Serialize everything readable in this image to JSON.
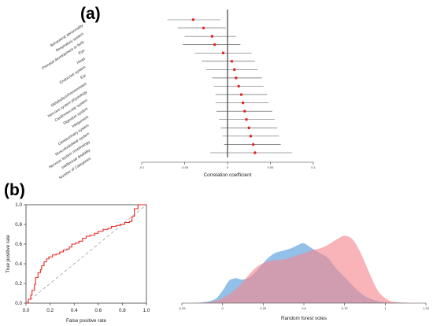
{
  "panels": {
    "a_label": "(a)",
    "b_label": "(b)"
  },
  "chart_data": [
    {
      "type": "scatter",
      "variant": "forest-plot",
      "panel": "(a)",
      "xlabel": "Correlation coefficient",
      "xlim": [
        -0.1,
        0.1
      ],
      "xticks": [
        "-0.1",
        "-0.05",
        "0",
        "0.05",
        "0.1"
      ],
      "xtick_values": [
        -0.1,
        -0.05,
        0,
        0.05,
        0.1
      ],
      "reference_line": 0,
      "point_color": "#e8231e",
      "categories": [
        "Behavioral abnormality",
        "Respiratory system",
        "Prenatal development or birth",
        "Eye",
        "Head",
        "Endocrine system",
        "Ear",
        "Metabolism/homeostasis",
        "Nervous system physiology",
        "Cardiovascular system",
        "Digestive system",
        "Integument",
        "Genitourinary system",
        "Musculoskeletal system",
        "Nervous system morphology",
        "Intellectual disability",
        "Number of Categories"
      ],
      "estimate": [
        -0.04,
        -0.028,
        -0.018,
        -0.015,
        -0.005,
        0.005,
        0.008,
        0.01,
        0.013,
        0.016,
        0.018,
        0.02,
        0.022,
        0.025,
        0.027,
        0.03,
        0.032
      ],
      "lower": [
        -0.07,
        -0.058,
        -0.05,
        -0.052,
        -0.038,
        -0.03,
        -0.025,
        -0.018,
        -0.016,
        -0.014,
        -0.014,
        -0.013,
        -0.01,
        -0.008,
        -0.006,
        -0.004,
        -0.02
      ],
      "upper": [
        -0.008,
        -0.002,
        0.01,
        0.015,
        0.028,
        0.032,
        0.035,
        0.04,
        0.042,
        0.046,
        0.048,
        0.052,
        0.055,
        0.058,
        0.06,
        0.062,
        0.075
      ]
    },
    {
      "type": "line",
      "variant": "roc-curve",
      "panel": "(b)",
      "xlabel": "False positive rate",
      "ylabel": "True positive rate",
      "xlim": [
        0,
        1
      ],
      "ylim": [
        0,
        1
      ],
      "ticks": [
        0.0,
        0.2,
        0.4,
        0.6,
        0.8,
        1.0
      ],
      "tick_labels": [
        "0.0",
        "0.2",
        "0.4",
        "0.6",
        "0.8",
        "1.0"
      ],
      "curve_color": "#e8231e",
      "diagonal_color": "#a8a8a8",
      "fpr": [
        0,
        0.02,
        0.02,
        0.04,
        0.04,
        0.05,
        0.05,
        0.07,
        0.07,
        0.08,
        0.08,
        0.1,
        0.1,
        0.12,
        0.12,
        0.13,
        0.13,
        0.15,
        0.15,
        0.17,
        0.17,
        0.19,
        0.19,
        0.22,
        0.22,
        0.25,
        0.25,
        0.28,
        0.28,
        0.31,
        0.31,
        0.34,
        0.34,
        0.36,
        0.36,
        0.38,
        0.38,
        0.41,
        0.41,
        0.44,
        0.44,
        0.47,
        0.47,
        0.5,
        0.5,
        0.53,
        0.53,
        0.57,
        0.57,
        0.6,
        0.6,
        0.64,
        0.64,
        0.68,
        0.68,
        0.71,
        0.71,
        0.75,
        0.75,
        0.78,
        0.78,
        0.82,
        0.82,
        0.86,
        0.86,
        0.88,
        0.88,
        0.9,
        0.9,
        0.93,
        0.93,
        1.0
      ],
      "tpr": [
        0,
        0,
        0.04,
        0.04,
        0.08,
        0.08,
        0.13,
        0.13,
        0.19,
        0.19,
        0.26,
        0.26,
        0.31,
        0.31,
        0.34,
        0.34,
        0.38,
        0.38,
        0.42,
        0.42,
        0.45,
        0.45,
        0.47,
        0.47,
        0.49,
        0.49,
        0.5,
        0.5,
        0.52,
        0.52,
        0.54,
        0.54,
        0.55,
        0.55,
        0.57,
        0.57,
        0.6,
        0.6,
        0.61,
        0.61,
        0.63,
        0.63,
        0.66,
        0.66,
        0.68,
        0.68,
        0.69,
        0.69,
        0.71,
        0.71,
        0.73,
        0.73,
        0.75,
        0.75,
        0.76,
        0.76,
        0.78,
        0.78,
        0.79,
        0.79,
        0.8,
        0.8,
        0.82,
        0.82,
        0.83,
        0.83,
        0.88,
        0.88,
        0.96,
        0.96,
        1.0,
        1.0
      ]
    },
    {
      "type": "area",
      "variant": "density",
      "panel": "(b)",
      "xlabel": "Random forest votes",
      "xlim": [
        -0.25,
        1.25
      ],
      "xticks": [
        "-0.25",
        "0",
        "0.25",
        "0.5",
        "0.75",
        "1",
        "1.25"
      ],
      "xtick_values": [
        -0.25,
        0,
        0.25,
        0.5,
        0.75,
        1.0,
        1.25
      ],
      "ylim": [
        0,
        1.2
      ],
      "x": [
        -0.25,
        -0.15,
        -0.05,
        0.0,
        0.04,
        0.08,
        0.12,
        0.17,
        0.22,
        0.27,
        0.32,
        0.37,
        0.42,
        0.47,
        0.5,
        0.55,
        0.6,
        0.65,
        0.7,
        0.75,
        0.8,
        0.85,
        0.9,
        0.95,
        1.0,
        1.05,
        1.15,
        1.25
      ],
      "series": [
        {
          "color": "#6aa7e0",
          "values": [
            0.0,
            0.004,
            0.06,
            0.2,
            0.36,
            0.4,
            0.38,
            0.42,
            0.55,
            0.7,
            0.8,
            0.84,
            0.88,
            0.94,
            0.96,
            0.88,
            0.8,
            0.72,
            0.55,
            0.42,
            0.28,
            0.16,
            0.08,
            0.035,
            0.012,
            0.004,
            0.0,
            0.0
          ]
        },
        {
          "color": "#f3868d",
          "values": [
            0.0,
            0.002,
            0.03,
            0.08,
            0.14,
            0.22,
            0.32,
            0.48,
            0.6,
            0.66,
            0.69,
            0.7,
            0.73,
            0.78,
            0.8,
            0.85,
            0.88,
            0.94,
            1.02,
            1.08,
            1.02,
            0.8,
            0.5,
            0.22,
            0.08,
            0.025,
            0.003,
            0.0
          ]
        }
      ]
    }
  ]
}
